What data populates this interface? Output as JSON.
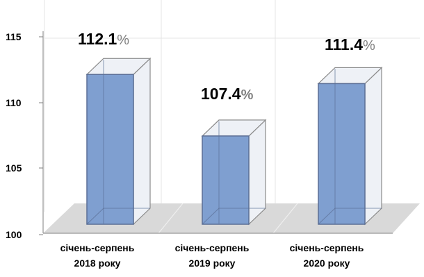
{
  "chart_data": {
    "type": "bar",
    "style": "3d-column",
    "categories": [
      [
        "січень-серпень",
        "2018 року"
      ],
      [
        "січень-серпень",
        "2019 року"
      ],
      [
        "січень-серпень",
        "2020 року"
      ]
    ],
    "values": [
      112.1,
      107.4,
      111.4
    ],
    "data_labels": [
      {
        "number": "112.1",
        "suffix": "%"
      },
      {
        "number": "107.4",
        "suffix": "%"
      },
      {
        "number": "111.4",
        "suffix": "%"
      }
    ],
    "data_label_percent_colors": [
      "#808080",
      "#000000",
      "#808080"
    ],
    "y_ticks": [
      "100",
      "105",
      "110",
      "115"
    ],
    "ylim": [
      100,
      115
    ],
    "title": "",
    "xlabel": "",
    "ylabel": "",
    "grid": true,
    "legend": "none",
    "colors": {
      "bar_front": "#7f9fd0",
      "bar_stroke": "#5b6f96",
      "glass_fill": "#eef1f6",
      "glass_stroke": "#8a8a8a",
      "floor": "#d9d9d9",
      "gridline": "#e4e4e4",
      "axis": "#7f7f7f"
    }
  }
}
